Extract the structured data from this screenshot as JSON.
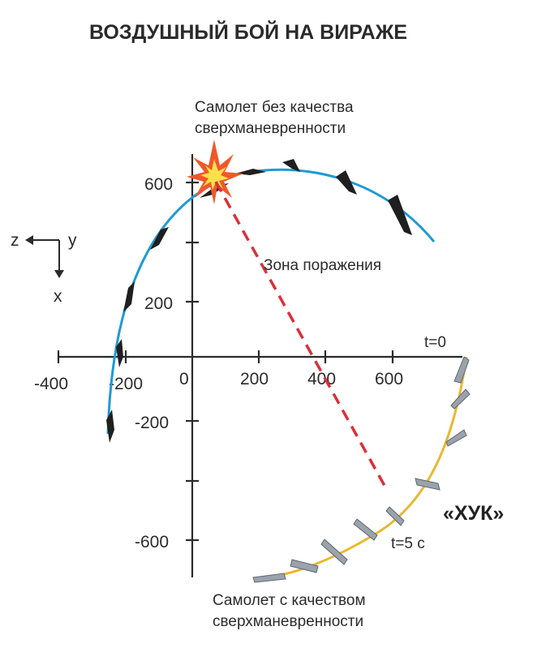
{
  "title": "ВОЗДУШНЫЙ БОЙ НА ВИРАЖЕ",
  "labels": {
    "no_supermaneuver": "Самолет без качества сверхманевренности",
    "no_supermaneuver_line1": "Самолет без качества",
    "no_supermaneuver_line2": "сверхманевренности",
    "kill_zone": "Зона поражения",
    "t0": "t=0",
    "t5": "t=5 с",
    "hook": "«ХУК»",
    "supermaneuver_line1": "Самолет с качеством",
    "supermaneuver_line2": "сверхманевренности"
  },
  "axes": {
    "z": "z",
    "y": "y",
    "x": "x",
    "h_ticks": [
      "-400",
      "-200",
      "0",
      "200",
      "400",
      "600"
    ],
    "v_ticks": [
      "600",
      "200",
      "-200",
      "-600"
    ]
  },
  "colors": {
    "blue_path": "#1e9ad6",
    "yellow_path": "#e8b830",
    "kill_zone_line": "#d9303a",
    "axis": "#2a2a2a",
    "explosion_outer": "#f0582a",
    "explosion_inner": "#fde14a"
  },
  "icons": {
    "explosion": "explosion-icon",
    "fighter": "fighter-jet-icon",
    "su_plane": "supermaneuverable-plane-icon"
  }
}
